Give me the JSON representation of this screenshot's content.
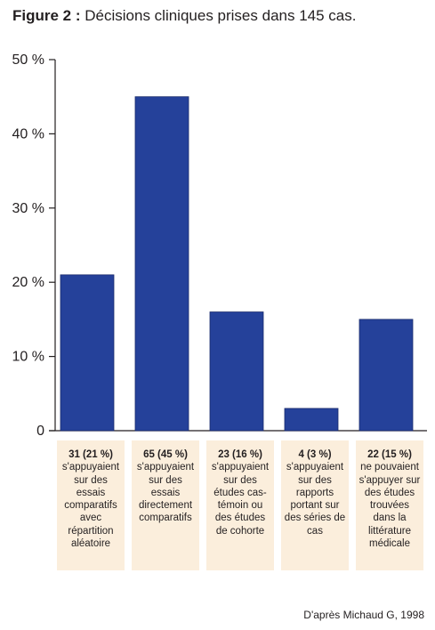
{
  "figure": {
    "label": "Figure 2 :",
    "title": "Décisions cliniques prises dans 145 cas."
  },
  "chart_data": {
    "type": "bar",
    "title": "Décisions cliniques prises dans 145 cas.",
    "ylabel": "",
    "xlabel": "",
    "ylim": [
      0,
      50
    ],
    "yticks": [
      "0",
      "10 %",
      "20 %",
      "30 %",
      "40 %",
      "50 %"
    ],
    "ytick_values": [
      0,
      10,
      20,
      30,
      40,
      50
    ],
    "grid": false,
    "bar_color": "#25419a",
    "box_color": "#fbeedc",
    "values": [
      21,
      45,
      16,
      3,
      15
    ],
    "categories": [
      {
        "count": "31 (21 %)",
        "desc": [
          "s'appuyaient",
          "sur des",
          "essais",
          "comparatifs",
          "avec",
          "répartition",
          "aléatoire"
        ]
      },
      {
        "count": "65 (45 %)",
        "desc": [
          "s'appuyaient",
          "sur des",
          "essais",
          "directement",
          "comparatifs"
        ]
      },
      {
        "count": "23 (16 %)",
        "desc": [
          "s'appuyaient",
          "sur des",
          "études cas-",
          "témoin ou",
          "des études",
          "de cohorte"
        ]
      },
      {
        "count": "4 (3 %)",
        "desc": [
          "s'appuyaient",
          "sur des",
          "rapports",
          "portant sur",
          "des séries de",
          "cas"
        ]
      },
      {
        "count": "22 (15 %)",
        "desc": [
          "ne pouvaient",
          "s'appuyer sur",
          "des études",
          "trouvées",
          "dans la",
          "littérature",
          "médicale"
        ]
      }
    ]
  },
  "source": "D'après Michaud G, 1998"
}
